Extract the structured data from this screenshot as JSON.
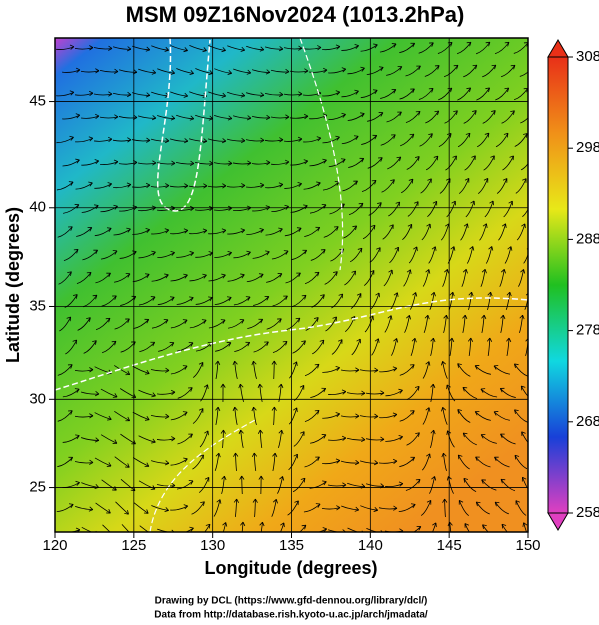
{
  "chart_data": {
    "type": "map",
    "title": "MSM 09Z16Nov2024 (1013.2hPa)",
    "xlabel": "Longitude (degrees)",
    "ylabel": "Latitude  (degrees)",
    "projection": "mercator",
    "xlim": [
      120,
      150
    ],
    "xticks": [
      120,
      125,
      130,
      135,
      140,
      145,
      150
    ],
    "ylim": [
      22.4,
      47.8
    ],
    "yticks": [
      25,
      30,
      35,
      40,
      45
    ],
    "grid": true,
    "colorbar": {
      "lim": [
        258,
        308
      ],
      "ticks": [
        258,
        268,
        278,
        288,
        298,
        308
      ],
      "colors": [
        "#e040c0",
        "#1840d8",
        "#10d8e0",
        "#20c020",
        "#e8e818",
        "#f09018",
        "#e83018"
      ]
    },
    "credits": [
      "Drawing by DCL (https://www.gfd-dennou.org/library/dcl/)",
      "Data from http://database.rish.kyoto-u.ac.jp/arch/jmadata/"
    ]
  }
}
